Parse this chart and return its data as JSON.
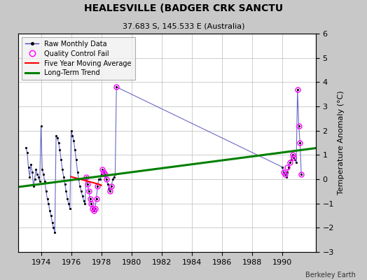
{
  "title": "HEALESVILLE (BADGER CRK SANCTU",
  "subtitle": "37.683 S, 145.533 E (Australia)",
  "ylabel": "Temperature Anomaly (°C)",
  "credit": "Berkeley Earth",
  "ylim": [
    -3,
    6
  ],
  "xlim": [
    1972.5,
    1992.2
  ],
  "xticks": [
    1974,
    1976,
    1978,
    1980,
    1982,
    1984,
    1986,
    1988,
    1990
  ],
  "yticks_right": [
    -3,
    -2,
    -1,
    0,
    1,
    2,
    3,
    4,
    5,
    6
  ],
  "yticks_left": [
    -3,
    -2,
    -1,
    0,
    1,
    2,
    3,
    4,
    5,
    6
  ],
  "bg_color": "#c8c8c8",
  "plot_bg_color": "#ffffff",
  "raw_x": [
    1973.0,
    1973.083,
    1973.167,
    1973.25,
    1973.333,
    1973.417,
    1973.5,
    1973.583,
    1973.667,
    1973.75,
    1973.833,
    1973.917,
    1974.0,
    1974.083,
    1974.167,
    1974.25,
    1974.333,
    1974.417,
    1974.5,
    1974.583,
    1974.667,
    1974.75,
    1974.833,
    1974.917,
    1975.0,
    1975.083,
    1975.167,
    1975.25,
    1975.333,
    1975.417,
    1975.5,
    1975.583,
    1975.667,
    1975.75,
    1975.833,
    1975.917,
    1976.0,
    1976.083,
    1976.167,
    1976.25,
    1976.333,
    1976.417,
    1976.5,
    1976.583,
    1976.667,
    1976.75,
    1976.833,
    1976.917,
    1977.0,
    1977.083,
    1977.167,
    1977.25,
    1977.333,
    1977.417,
    1977.5,
    1977.583,
    1977.667,
    1977.75,
    1977.833,
    1977.917,
    1978.0,
    1978.083,
    1978.167,
    1978.25,
    1978.333,
    1978.417,
    1978.5,
    1978.583,
    1978.667,
    1978.75,
    1978.833,
    1978.917,
    1979.0,
    1990.0,
    1990.083,
    1990.167,
    1990.25,
    1990.333,
    1990.417,
    1990.5,
    1990.583,
    1990.667,
    1990.75,
    1990.833,
    1990.917,
    1991.0,
    1991.083,
    1991.167,
    1991.25
  ],
  "raw_y": [
    1.3,
    1.1,
    0.5,
    0.1,
    0.6,
    0.3,
    -0.3,
    0.0,
    0.4,
    0.2,
    0.1,
    -0.1,
    2.2,
    0.4,
    0.2,
    -0.1,
    -0.5,
    -0.8,
    -1.0,
    -1.3,
    -1.5,
    -1.8,
    -2.0,
    -2.2,
    1.8,
    1.7,
    1.5,
    1.2,
    0.8,
    0.4,
    0.1,
    -0.2,
    -0.5,
    -0.8,
    -1.0,
    -1.2,
    2.0,
    1.8,
    1.6,
    1.2,
    0.8,
    0.3,
    0.0,
    -0.3,
    -0.5,
    -0.7,
    -0.9,
    -1.0,
    0.1,
    -0.2,
    -0.5,
    -0.8,
    -1.0,
    -1.2,
    -1.3,
    -1.2,
    -0.8,
    -0.3,
    0.0,
    0.0,
    0.2,
    0.4,
    0.3,
    0.2,
    0.0,
    -0.2,
    -0.4,
    -0.5,
    -0.3,
    0.0,
    0.1,
    0.2,
    3.8,
    0.5,
    0.3,
    0.2,
    0.1,
    0.3,
    0.5,
    0.7,
    0.8,
    1.0,
    0.9,
    0.8,
    0.7,
    3.7,
    2.2,
    1.5,
    0.2
  ],
  "qc_fail_x": [
    1977.0,
    1977.083,
    1977.167,
    1977.25,
    1977.333,
    1977.417,
    1977.5,
    1977.583,
    1977.667,
    1977.75,
    1978.083,
    1978.167,
    1978.25,
    1978.333,
    1978.583,
    1978.667,
    1979.0,
    1990.083,
    1990.167,
    1990.333,
    1990.5,
    1990.667,
    1990.75,
    1991.0,
    1991.083,
    1991.167,
    1991.25
  ],
  "qc_fail_y": [
    0.1,
    -0.2,
    -0.5,
    -0.8,
    -1.0,
    -1.2,
    -1.3,
    -1.2,
    -0.8,
    -0.3,
    0.4,
    0.3,
    0.2,
    0.0,
    -0.5,
    -0.3,
    3.8,
    0.3,
    0.2,
    0.5,
    0.7,
    1.0,
    0.9,
    3.7,
    2.2,
    1.5,
    0.2
  ],
  "moving_avg_x": [
    1976.0,
    1976.3,
    1976.6,
    1976.9,
    1977.2,
    1977.5,
    1977.8,
    1978.0
  ],
  "moving_avg_y": [
    0.1,
    0.05,
    0.0,
    -0.05,
    -0.1,
    -0.15,
    -0.2,
    -0.25
  ],
  "trend_x": [
    1972.5,
    1992.2
  ],
  "trend_y": [
    -0.32,
    1.28
  ]
}
